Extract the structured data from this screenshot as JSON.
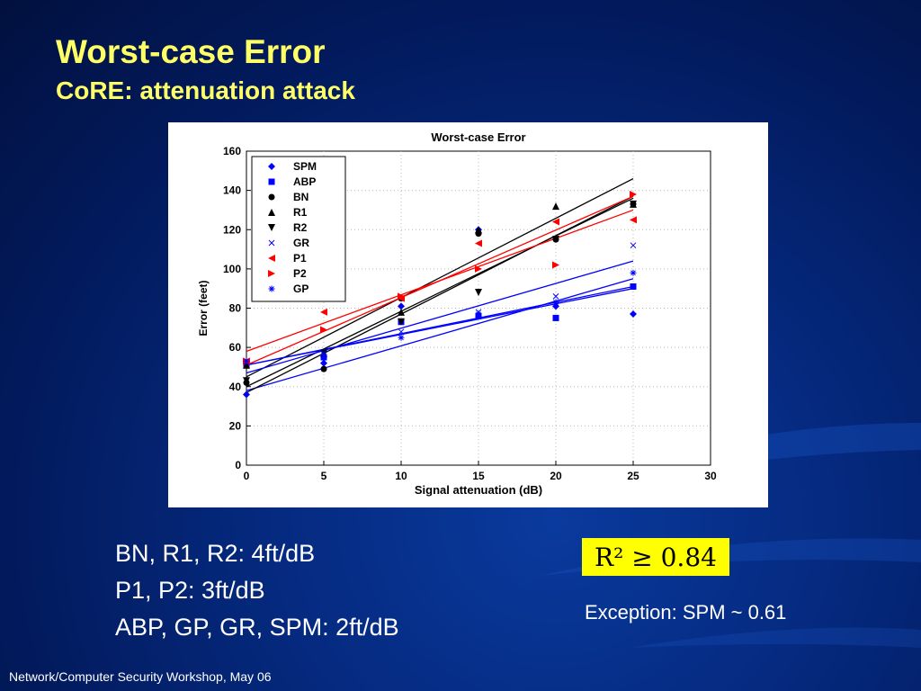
{
  "slide": {
    "title": "Worst-case Error",
    "subtitle": "CoRE: attenuation attack",
    "bullets": [
      "BN, R1, R2: 4ft/dB",
      "P1, P2: 3ft/dB",
      "ABP, GP, GR, SPM: 2ft/dB"
    ],
    "formula": "R² ≥ 0.84",
    "exception": "Exception: SPM ~ 0.61",
    "footer": "Network/Computer Security Workshop, May 06"
  },
  "colors": {
    "title": "#ffff66",
    "blue_series": "#0000ff",
    "black_series": "#000000",
    "red_series": "#ff0000",
    "formula_bg": "#ffff00"
  },
  "chart_data": {
    "type": "scatter",
    "title": "Worst-case Error",
    "xlabel": "Signal attenuation (dB)",
    "ylabel": "Error (feet)",
    "xlim": [
      0,
      30
    ],
    "ylim": [
      0,
      160
    ],
    "xticks": [
      0,
      5,
      10,
      15,
      20,
      25,
      30
    ],
    "yticks": [
      0,
      20,
      40,
      60,
      80,
      100,
      120,
      140,
      160
    ],
    "grid": true,
    "legend_position": "top-left",
    "x": [
      0,
      5,
      10,
      15,
      20,
      25
    ],
    "series": [
      {
        "name": "SPM",
        "marker": "diamond",
        "color": "#0000ff",
        "values": [
          36,
          52,
          81,
          120,
          81,
          77
        ],
        "fit": [
          38,
          95
        ]
      },
      {
        "name": "ABP",
        "marker": "square",
        "color": "#0000ff",
        "values": [
          51,
          55,
          73,
          76,
          75,
          91
        ],
        "fit": [
          51,
          91
        ]
      },
      {
        "name": "BN",
        "marker": "circle",
        "color": "#000000",
        "values": [
          42,
          49,
          85,
          118,
          115,
          133
        ],
        "fit": [
          40,
          136
        ]
      },
      {
        "name": "R1",
        "marker": "triangle-up",
        "color": "#000000",
        "values": [
          51,
          57,
          78,
          120,
          132,
          133
        ],
        "fit": [
          45,
          146
        ]
      },
      {
        "name": "R2",
        "marker": "triangle-down",
        "color": "#000000",
        "values": [
          43,
          57,
          73,
          88,
          115,
          133
        ],
        "fit": [
          37,
          137
        ]
      },
      {
        "name": "GR",
        "marker": "x",
        "color": "#0000ff",
        "values": [
          53,
          57,
          68,
          78,
          86,
          112
        ],
        "fit": [
          47,
          104
        ]
      },
      {
        "name": "P1",
        "marker": "triangle-left",
        "color": "#ff0000",
        "values": [
          53,
          78,
          85,
          113,
          124,
          125
        ],
        "fit": [
          58,
          130
        ]
      },
      {
        "name": "P2",
        "marker": "triangle-right",
        "color": "#ff0000",
        "values": [
          53,
          69,
          86,
          100,
          102,
          138
        ],
        "fit": [
          51,
          137
        ]
      },
      {
        "name": "GP",
        "marker": "asterisk",
        "color": "#0000ff",
        "values": [
          53,
          56,
          65,
          77,
          83,
          98
        ],
        "fit": [
          51,
          90
        ]
      }
    ]
  }
}
